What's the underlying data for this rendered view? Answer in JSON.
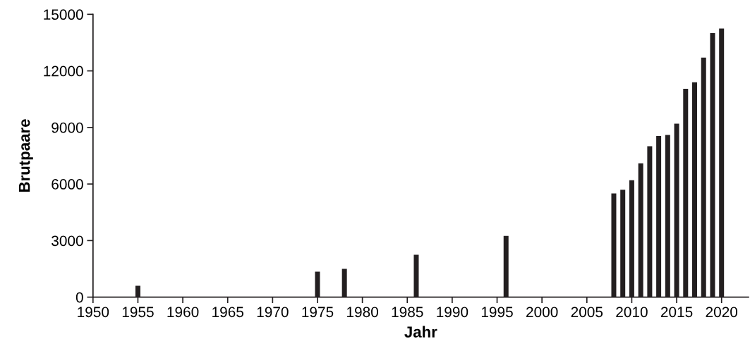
{
  "chart_data": {
    "type": "bar",
    "xlabel": "Jahr",
    "ylabel": "Brutpaare",
    "x": [
      1955,
      1975,
      1978,
      1986,
      1996,
      2008,
      2009,
      2010,
      2011,
      2012,
      2013,
      2014,
      2015,
      2016,
      2017,
      2018,
      2019,
      2020
    ],
    "values": [
      600,
      1350,
      1500,
      2250,
      3250,
      5500,
      5700,
      6200,
      7100,
      8000,
      8550,
      8600,
      9200,
      11050,
      11400,
      12700,
      14000,
      14250
    ],
    "color": "#231f20",
    "xlim": [
      1950,
      2023
    ],
    "xticks": [
      1950,
      1955,
      1960,
      1965,
      1970,
      1975,
      1980,
      1985,
      1990,
      1995,
      2000,
      2005,
      2010,
      2015,
      2020
    ],
    "ylim": [
      0,
      15000
    ],
    "yticks": [
      0,
      3000,
      6000,
      9000,
      12000,
      15000
    ],
    "grid": false
  }
}
